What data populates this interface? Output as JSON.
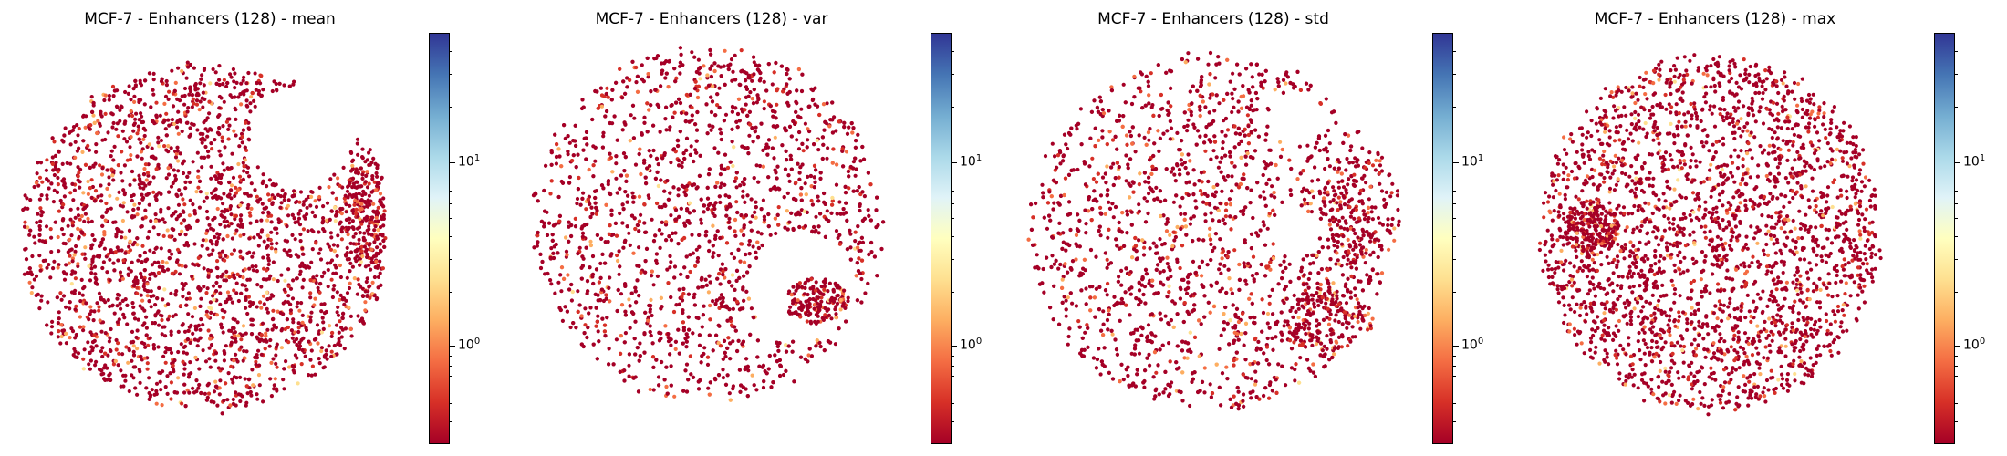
{
  "chart_data": [
    {
      "type": "scatter",
      "title": "MCF-7 - Enhancers (128) - mean",
      "colorbar": {
        "scale": "log",
        "colormap": "RdYlBu",
        "range": [
          0.3,
          50
        ],
        "ticks": [
          {
            "base": "10",
            "exp": "0"
          },
          {
            "base": "10",
            "exp": "1"
          }
        ]
      }
    },
    {
      "type": "scatter",
      "title": "MCF-7 - Enhancers (128) - var",
      "colorbar": {
        "scale": "log",
        "colormap": "RdYlBu",
        "range": [
          0.3,
          50
        ],
        "ticks": [
          {
            "base": "10",
            "exp": "0"
          },
          {
            "base": "10",
            "exp": "1"
          }
        ]
      }
    },
    {
      "type": "scatter",
      "title": "MCF-7 - Enhancers (128) - std",
      "colorbar": {
        "scale": "log",
        "colormap": "RdYlBu",
        "range": [
          0.3,
          50
        ],
        "ticks": [
          {
            "base": "10",
            "exp": "0"
          },
          {
            "base": "10",
            "exp": "1"
          }
        ]
      }
    },
    {
      "type": "scatter",
      "title": "MCF-7 - Enhancers (128) - max",
      "colorbar": {
        "scale": "log",
        "colormap": "RdYlBu",
        "range": [
          0.3,
          50
        ],
        "ticks": [
          {
            "base": "10",
            "exp": "0"
          },
          {
            "base": "10",
            "exp": "1"
          }
        ]
      }
    }
  ],
  "colors": {
    "point_dominant": "#a50026",
    "point_secondary": "#d73027",
    "point_accent": "#f46d43",
    "point_light": "#fdae61",
    "point_pale": "#fee090"
  }
}
